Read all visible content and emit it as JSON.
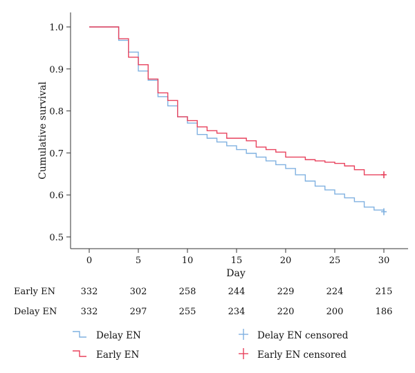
{
  "chart_data": {
    "type": "line",
    "subtype": "kaplan-meier step",
    "title": "",
    "xlabel": "Day",
    "ylabel": "Cumulative survival",
    "xlim": [
      0,
      30
    ],
    "ylim": [
      0.5,
      1.0
    ],
    "x_ticks": [
      0,
      5,
      10,
      15,
      20,
      25,
      30
    ],
    "y_ticks": [
      0.5,
      0.6,
      0.7,
      0.8,
      0.9,
      1.0
    ],
    "x_tick_labels": [
      "0",
      "5",
      "10",
      "15",
      "20",
      "25",
      "30"
    ],
    "y_tick_labels": [
      "0.5",
      "0.6",
      "0.7",
      "0.8",
      "0.9",
      "1.0"
    ],
    "grid": false,
    "legend_position": "bottom",
    "series": [
      {
        "name": "Delay EN",
        "color": "#7fb0e0",
        "steps": [
          [
            0,
            1.0
          ],
          [
            3,
            0.968
          ],
          [
            4,
            0.94
          ],
          [
            5,
            0.895
          ],
          [
            6,
            0.873
          ],
          [
            7,
            0.834
          ],
          [
            8,
            0.812
          ],
          [
            9,
            0.786
          ],
          [
            10,
            0.771
          ],
          [
            11,
            0.744
          ],
          [
            12,
            0.735
          ],
          [
            13,
            0.726
          ],
          [
            14,
            0.717
          ],
          [
            15,
            0.708
          ],
          [
            16,
            0.699
          ],
          [
            17,
            0.69
          ],
          [
            18,
            0.681
          ],
          [
            19,
            0.672
          ],
          [
            20,
            0.663
          ],
          [
            21,
            0.648
          ],
          [
            22,
            0.633
          ],
          [
            23,
            0.621
          ],
          [
            24,
            0.612
          ],
          [
            25,
            0.602
          ],
          [
            26,
            0.593
          ],
          [
            27,
            0.584
          ],
          [
            28,
            0.571
          ],
          [
            29,
            0.564
          ],
          [
            30,
            0.56
          ]
        ],
        "censored": [
          [
            30,
            0.56
          ]
        ]
      },
      {
        "name": "Early EN",
        "color": "#e8415c",
        "steps": [
          [
            0,
            1.0
          ],
          [
            3,
            0.972
          ],
          [
            4,
            0.928
          ],
          [
            5,
            0.91
          ],
          [
            6,
            0.876
          ],
          [
            7,
            0.843
          ],
          [
            8,
            0.825
          ],
          [
            9,
            0.786
          ],
          [
            10,
            0.777
          ],
          [
            11,
            0.762
          ],
          [
            12,
            0.753
          ],
          [
            13,
            0.747
          ],
          [
            14,
            0.735
          ],
          [
            15,
            0.735
          ],
          [
            16,
            0.729
          ],
          [
            17,
            0.714
          ],
          [
            18,
            0.708
          ],
          [
            19,
            0.702
          ],
          [
            20,
            0.69
          ],
          [
            21,
            0.69
          ],
          [
            22,
            0.684
          ],
          [
            23,
            0.681
          ],
          [
            24,
            0.678
          ],
          [
            25,
            0.675
          ],
          [
            26,
            0.669
          ],
          [
            27,
            0.66
          ],
          [
            28,
            0.648
          ],
          [
            29,
            0.648
          ],
          [
            30,
            0.648
          ]
        ],
        "censored": [
          [
            30,
            0.648
          ]
        ]
      }
    ],
    "risk_table": {
      "days": [
        0,
        5,
        10,
        15,
        20,
        25,
        30
      ],
      "rows": [
        {
          "label": "Early EN",
          "values": [
            "332",
            "302",
            "258",
            "244",
            "229",
            "224",
            "215"
          ]
        },
        {
          "label": "Delay EN",
          "values": [
            "332",
            "297",
            "255",
            "234",
            "220",
            "200",
            "186"
          ]
        }
      ]
    },
    "legend": [
      {
        "label": "Delay EN",
        "kind": "line",
        "series": 0
      },
      {
        "label": "Early EN",
        "kind": "line",
        "series": 1
      },
      {
        "label": "Delay EN censored",
        "kind": "censor",
        "series": 0
      },
      {
        "label": "Early EN censored",
        "kind": "censor",
        "series": 1
      }
    ]
  }
}
